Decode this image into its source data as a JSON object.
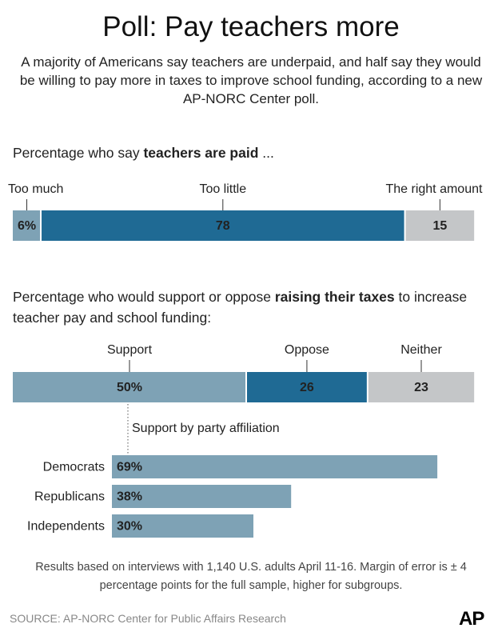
{
  "title": "Poll: Pay teachers more",
  "subtitle": "A majority of Americans say teachers are underpaid, and half say they would be willing to pay more in taxes to improve school funding, according to a new AP-NORC Center poll.",
  "chart_data": [
    {
      "type": "stacked-bar",
      "heading": [
        {
          "text": "Percentage who say "
        },
        {
          "text": "teachers are paid",
          "bold": true
        },
        {
          "text": " ..."
        }
      ],
      "categories": [
        "Too much",
        "Too little",
        "The right amount"
      ],
      "values": [
        6,
        78,
        15
      ],
      "value_labels": [
        "6%",
        "78",
        "15"
      ],
      "colors": [
        "#7ea2b5",
        "#1f6a94",
        "#c4c6c8"
      ],
      "xlim": [
        0,
        100
      ]
    },
    {
      "type": "stacked-bar",
      "heading": [
        {
          "text": "Percentage who would support or oppose "
        },
        {
          "text": "raising their taxes",
          "bold": true
        },
        {
          "text": " to increase teacher pay and school funding:"
        }
      ],
      "categories": [
        "Support",
        "Oppose",
        "Neither"
      ],
      "values": [
        50,
        26,
        23
      ],
      "value_labels": [
        "50%",
        "26",
        "23"
      ],
      "colors": [
        "#7ea2b5",
        "#1f6a94",
        "#c4c6c8"
      ],
      "xlim": [
        0,
        100
      ]
    },
    {
      "type": "bar",
      "subtitle": "Support by party affiliation",
      "categories": [
        "Democrats",
        "Republicans",
        "Independents"
      ],
      "values": [
        69,
        38,
        30
      ],
      "value_labels": [
        "69%",
        "38%",
        "30%"
      ],
      "color": "#7ea2b5",
      "xlim": [
        0,
        100
      ]
    }
  ],
  "note": "Results based on interviews with 1,140 U.S. adults April 11-16. Margin of error is ± 4 percentage points for the full sample, higher for subgroups.",
  "source": "SOURCE: AP-NORC Center for Public Affairs Research",
  "logo": "AP"
}
